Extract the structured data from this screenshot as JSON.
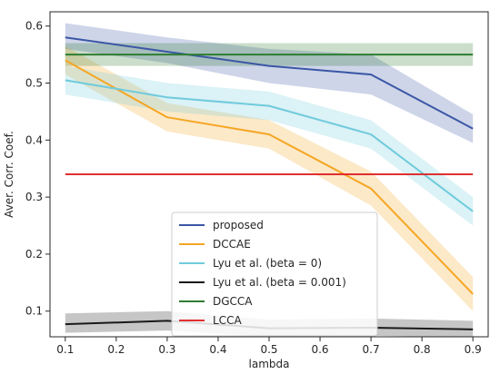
{
  "chart_data": {
    "type": "line",
    "title": "",
    "xlabel": "lambda",
    "ylabel": "Aver. Corr. Coef.",
    "xlim": [
      0.07,
      0.93
    ],
    "ylim": [
      0.055,
      0.625
    ],
    "x_ticks": [
      0.1,
      0.2,
      0.3,
      0.4,
      0.5,
      0.6,
      0.7,
      0.8,
      0.9
    ],
    "x_tick_labels": [
      "0.1",
      "0.2",
      "0.3",
      "0.4",
      "0.5",
      "0.6",
      "0.7",
      "0.8",
      "0.9"
    ],
    "y_ticks": [
      0.1,
      0.2,
      0.3,
      0.4,
      0.5,
      0.6
    ],
    "y_tick_labels": [
      "0.1",
      "0.2",
      "0.3",
      "0.4",
      "0.5",
      "0.6"
    ],
    "grid": false,
    "legend_position": "lower-center",
    "series": [
      {
        "name": "proposed",
        "color": "#3b57a6",
        "x": [
          0.1,
          0.3,
          0.5,
          0.7,
          0.9
        ],
        "y": [
          0.58,
          0.555,
          0.53,
          0.515,
          0.42
        ],
        "lower": [
          0.56,
          0.535,
          0.5,
          0.48,
          0.395
        ],
        "upper": [
          0.605,
          0.58,
          0.56,
          0.55,
          0.445
        ]
      },
      {
        "name": "DCCAE",
        "color": "#f5a623",
        "x": [
          0.1,
          0.3,
          0.5,
          0.7,
          0.9
        ],
        "y": [
          0.54,
          0.44,
          0.41,
          0.315,
          0.13
        ],
        "lower": [
          0.515,
          0.415,
          0.385,
          0.285,
          0.1
        ],
        "upper": [
          0.565,
          0.465,
          0.435,
          0.345,
          0.16
        ]
      },
      {
        "name": "Lyu et al. (beta = 0)",
        "color": "#6fcbdc",
        "x": [
          0.1,
          0.3,
          0.5,
          0.7,
          0.9
        ],
        "y": [
          0.505,
          0.475,
          0.46,
          0.41,
          0.275
        ],
        "lower": [
          0.48,
          0.45,
          0.435,
          0.385,
          0.25
        ],
        "upper": [
          0.53,
          0.5,
          0.485,
          0.435,
          0.3
        ]
      },
      {
        "name": "Lyu et al. (beta = 0.001)",
        "color": "#1a1a1a",
        "x": [
          0.1,
          0.3,
          0.5,
          0.7,
          0.9
        ],
        "y": [
          0.077,
          0.083,
          0.07,
          0.071,
          0.068
        ],
        "lower": [
          0.062,
          0.066,
          0.055,
          0.057,
          0.054
        ],
        "upper": [
          0.096,
          0.1,
          0.085,
          0.087,
          0.083
        ]
      },
      {
        "name": "DGCCA",
        "color": "#2e7d32",
        "x": [
          0.1,
          0.3,
          0.5,
          0.7,
          0.9
        ],
        "y": [
          0.55,
          0.55,
          0.55,
          0.55,
          0.55
        ],
        "lower": [
          0.53,
          0.53,
          0.53,
          0.53,
          0.53
        ],
        "upper": [
          0.57,
          0.57,
          0.57,
          0.57,
          0.57
        ]
      },
      {
        "name": "LCCA",
        "color": "#e03030",
        "x": [
          0.1,
          0.3,
          0.5,
          0.7,
          0.9
        ],
        "y": [
          0.34,
          0.34,
          0.34,
          0.34,
          0.34
        ]
      }
    ]
  }
}
